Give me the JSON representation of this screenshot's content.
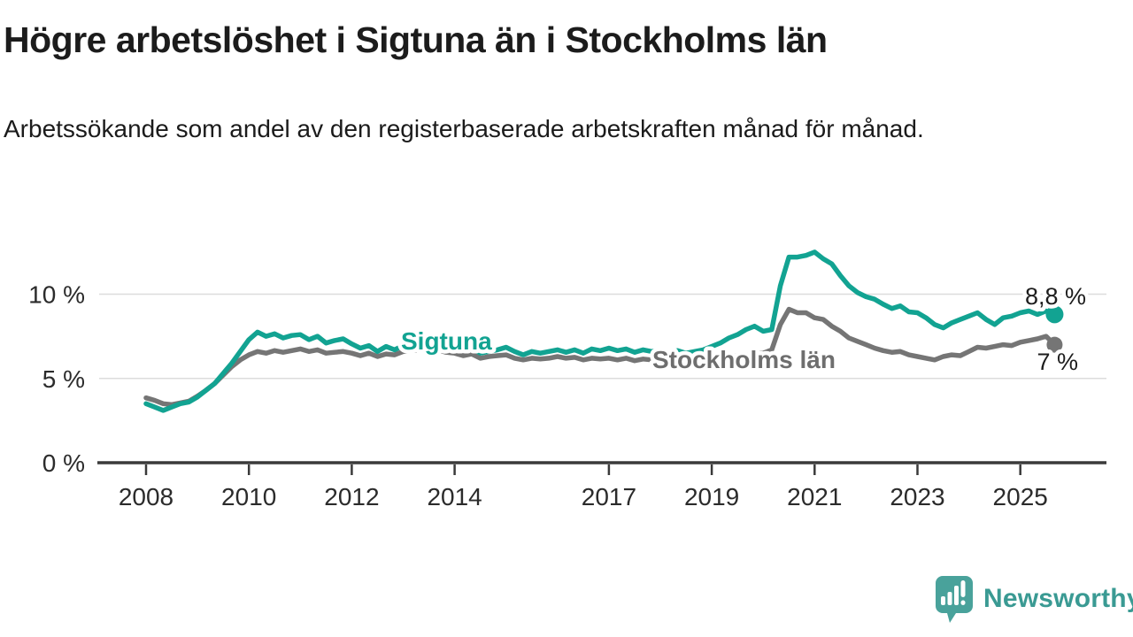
{
  "page": {
    "title": "Högre arbetslöshet i Sigtuna än i Stockholms län",
    "subtitle": "Arbetssökande som andel av den registerbaserade arbetskraften månad för månad."
  },
  "colors": {
    "sigtuna_teal": "#12a392",
    "stockholm_gray": "#757575",
    "series_label_gray": "#6e6e6e",
    "axis_line": "#3a3a3a",
    "tick_text": "#2b2b2b",
    "gridline": "#dcdcdc",
    "end_label_text": "#1d1d1d",
    "logo_teal": "#49a29b",
    "logo_text_teal": "#3a9a93",
    "background": "#ffffff"
  },
  "branding": {
    "logo_text": "Newsworthy",
    "logo_icon": "newsworthy-speech-bubble-bar-chart-icon"
  },
  "chart_data": {
    "type": "line",
    "title": "Högre arbetslöshet i Sigtuna än i Stockholms län",
    "subtitle": "Arbetssökande som andel av den registerbaserade arbetskraften månad för månad.",
    "x_unit": "year (decimal, monthly cadence sampled every 2 months)",
    "x_start": 2008.0,
    "x_step": 0.166667,
    "x_end": 2025.67,
    "xlim": [
      2007.05,
      2026.68
    ],
    "ylim": [
      0,
      13.6
    ],
    "grid": "horizontal",
    "xticks": [
      2008,
      2010,
      2012,
      2014,
      2017,
      2019,
      2021,
      2023,
      2025
    ],
    "yticks": [
      {
        "value": 0,
        "label": "0 %"
      },
      {
        "value": 5,
        "label": "5 %"
      },
      {
        "value": 10,
        "label": "10 %"
      }
    ],
    "legend_position": "inline-series-labels",
    "series": [
      {
        "name": "Stockholms län",
        "color": "#757575",
        "label_color": "#6e6e6e",
        "end_label": "7 %",
        "end_value": 7.0,
        "values": [
          3.85,
          3.7,
          3.5,
          3.45,
          3.55,
          3.65,
          3.95,
          4.3,
          4.7,
          5.2,
          5.7,
          6.1,
          6.4,
          6.6,
          6.5,
          6.65,
          6.55,
          6.65,
          6.75,
          6.6,
          6.7,
          6.5,
          6.55,
          6.6,
          6.5,
          6.35,
          6.5,
          6.3,
          6.45,
          6.4,
          6.6,
          6.65,
          6.7,
          6.6,
          6.7,
          6.55,
          6.5,
          6.35,
          6.45,
          6.2,
          6.3,
          6.35,
          6.4,
          6.2,
          6.1,
          6.2,
          6.15,
          6.2,
          6.3,
          6.2,
          6.25,
          6.1,
          6.2,
          6.15,
          6.2,
          6.1,
          6.2,
          6.05,
          6.15,
          6.1,
          6.1,
          6.0,
          6.1,
          6.0,
          6.05,
          6.1,
          6.2,
          6.25,
          6.3,
          6.35,
          6.4,
          6.45,
          6.5,
          6.7,
          8.2,
          9.1,
          8.9,
          8.9,
          8.6,
          8.5,
          8.1,
          7.8,
          7.4,
          7.2,
          7.0,
          6.8,
          6.65,
          6.55,
          6.6,
          6.4,
          6.3,
          6.2,
          6.1,
          6.3,
          6.4,
          6.35,
          6.6,
          6.85,
          6.8,
          6.9,
          7.0,
          6.95,
          7.15,
          7.25,
          7.35,
          7.5,
          7.0
        ]
      },
      {
        "name": "Sigtuna",
        "color": "#12a392",
        "label_color": "#12a392",
        "end_label": "8,8 %",
        "end_value": 8.8,
        "values": [
          3.5,
          3.3,
          3.1,
          3.3,
          3.5,
          3.6,
          3.9,
          4.3,
          4.7,
          5.3,
          5.9,
          6.6,
          7.3,
          7.75,
          7.5,
          7.65,
          7.4,
          7.55,
          7.6,
          7.3,
          7.5,
          7.1,
          7.25,
          7.35,
          7.05,
          6.8,
          6.95,
          6.6,
          6.9,
          6.7,
          6.95,
          7.05,
          7.15,
          7.05,
          7.2,
          7.0,
          6.9,
          6.7,
          6.8,
          6.5,
          6.6,
          6.7,
          6.85,
          6.6,
          6.4,
          6.6,
          6.5,
          6.6,
          6.7,
          6.55,
          6.7,
          6.5,
          6.75,
          6.65,
          6.8,
          6.65,
          6.75,
          6.55,
          6.7,
          6.6,
          6.7,
          6.55,
          6.65,
          6.5,
          6.6,
          6.7,
          6.9,
          7.1,
          7.4,
          7.6,
          7.9,
          8.1,
          7.8,
          7.9,
          10.5,
          12.2,
          12.2,
          12.3,
          12.5,
          12.1,
          11.8,
          11.1,
          10.5,
          10.1,
          9.85,
          9.7,
          9.4,
          9.15,
          9.3,
          8.95,
          8.9,
          8.6,
          8.2,
          8.0,
          8.3,
          8.5,
          8.7,
          8.9,
          8.5,
          8.2,
          8.6,
          8.7,
          8.9,
          9.0,
          8.8,
          9.0,
          8.8
        ]
      }
    ]
  }
}
